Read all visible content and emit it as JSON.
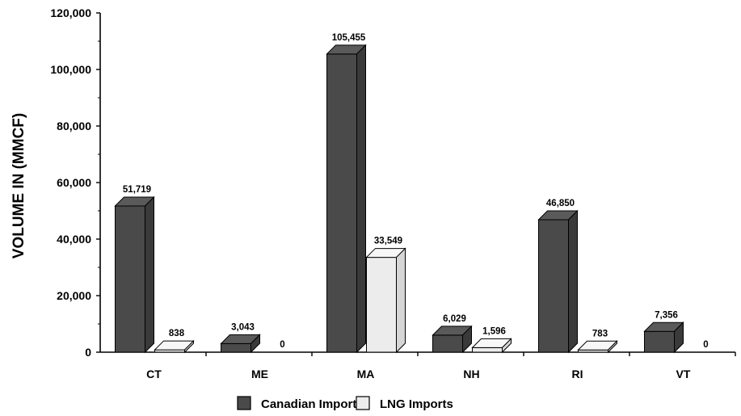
{
  "chart_data": {
    "type": "bar",
    "title": "",
    "xlabel": "",
    "ylabel": "VOLUME IN (MMCF)",
    "categories": [
      "CT",
      "ME",
      "MA",
      "NH",
      "RI",
      "VT"
    ],
    "series": [
      {
        "name": "Canadian Imports",
        "values": [
          51719,
          3043,
          105455,
          6029,
          46850,
          7356
        ],
        "labels": [
          "51,719",
          "3,043",
          "105,455",
          "6,029",
          "46,850",
          "7,356"
        ],
        "color": "#4a4a4a"
      },
      {
        "name": "LNG Imports",
        "values": [
          838,
          0,
          33549,
          1596,
          783,
          0
        ],
        "labels": [
          "838",
          "0",
          "33,549",
          "1,596",
          "783",
          "0"
        ],
        "color": "#ececec"
      }
    ],
    "ylim": [
      0,
      120000
    ],
    "yticks": [
      0,
      20000,
      40000,
      60000,
      80000,
      100000,
      120000
    ],
    "ytick_labels": [
      "0",
      "20,000",
      "40,000",
      "60,000",
      "80,000",
      "100,000",
      "120,000"
    ],
    "grid": false,
    "legend": "bottom",
    "style": "3d"
  }
}
